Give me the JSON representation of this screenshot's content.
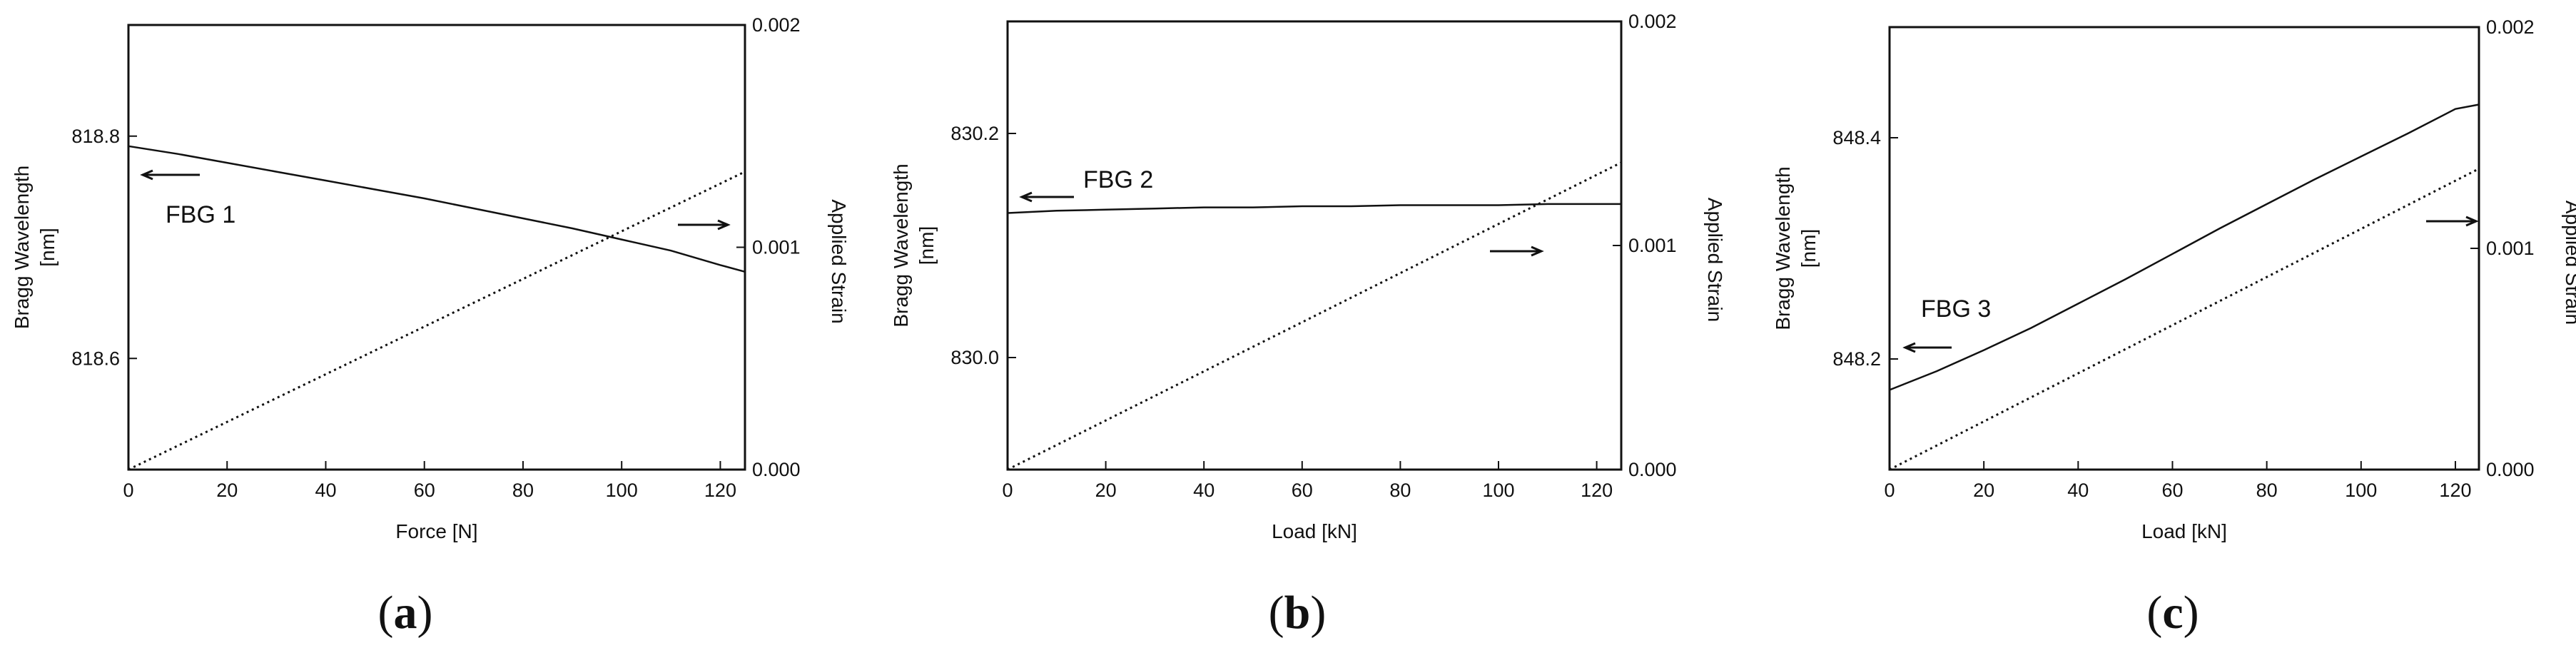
{
  "chart_data": [
    {
      "type": "line",
      "caption_letter": "a",
      "xlabel": "Force [N]",
      "ylabel": [
        "Bragg Wavelength",
        "[nm]"
      ],
      "y2label": "Applied Strain",
      "xlim": [
        0,
        125
      ],
      "ylim": [
        818.5,
        818.9
      ],
      "y2lim": [
        0.0,
        0.002
      ],
      "xticks": [
        "0",
        "20",
        "40",
        "60",
        "80",
        "100",
        "120"
      ],
      "yticks": [
        "818.6",
        "818.8"
      ],
      "y2ticks": [
        "0.000",
        "0.001",
        "0.002"
      ],
      "series": [
        {
          "label": "FBG 1",
          "axis": "left",
          "style": "solid",
          "x": [
            0,
            10,
            20,
            30,
            40,
            50,
            60,
            70,
            80,
            90,
            100,
            110,
            120,
            125
          ],
          "y": [
            818.791,
            818.784,
            818.776,
            818.768,
            818.76,
            818.752,
            818.744,
            818.735,
            818.726,
            818.717,
            818.707,
            818.697,
            818.684,
            818.678
          ]
        },
        {
          "label": "",
          "axis": "right",
          "style": "dotted",
          "x": [
            0,
            125
          ],
          "y": [
            0.0,
            0.00134
          ]
        }
      ]
    },
    {
      "type": "line",
      "caption_letter": "b",
      "xlabel": "Load [kN]",
      "ylabel": [
        "Bragg Wavelength",
        "[nm]"
      ],
      "y2label": "Applied Strain",
      "xlim": [
        0,
        125
      ],
      "ylim": [
        829.9,
        830.3
      ],
      "y2lim": [
        0.0,
        0.002
      ],
      "xticks": [
        "0",
        "20",
        "40",
        "60",
        "80",
        "100",
        "120"
      ],
      "yticks": [
        "830.0",
        "830.2"
      ],
      "y2ticks": [
        "0.000",
        "0.001",
        "0.002"
      ],
      "series": [
        {
          "label": "FBG 2",
          "axis": "left",
          "style": "solid",
          "x": [
            0,
            10,
            20,
            30,
            40,
            50,
            60,
            70,
            80,
            90,
            100,
            110,
            120,
            125
          ],
          "y": [
            830.129,
            830.131,
            830.132,
            830.133,
            830.134,
            830.134,
            830.135,
            830.135,
            830.136,
            830.136,
            830.136,
            830.137,
            830.137,
            830.137
          ]
        },
        {
          "label": "",
          "axis": "right",
          "style": "dotted",
          "x": [
            0,
            125
          ],
          "y": [
            0.0,
            0.00137
          ]
        }
      ]
    },
    {
      "type": "line",
      "caption_letter": "c",
      "xlabel": "Load [kN]",
      "ylabel": [
        "Bragg Wavelength",
        "[nm]"
      ],
      "y2label": "Applied Strain",
      "xlim": [
        0,
        125
      ],
      "ylim": [
        848.1,
        848.5
      ],
      "y2lim": [
        0.0,
        0.002
      ],
      "xticks": [
        "0",
        "20",
        "40",
        "60",
        "80",
        "100",
        "120"
      ],
      "yticks": [
        "848.2",
        "848.4"
      ],
      "y2ticks": [
        "0.000",
        "0.001",
        "0.002"
      ],
      "series": [
        {
          "label": "FBG 3",
          "axis": "left",
          "style": "solid",
          "x": [
            0,
            10,
            20,
            30,
            40,
            50,
            60,
            70,
            80,
            90,
            100,
            110,
            120,
            125
          ],
          "y": [
            848.172,
            848.189,
            848.208,
            848.228,
            848.25,
            848.272,
            848.295,
            848.318,
            848.34,
            848.362,
            848.383,
            848.404,
            848.426,
            848.43
          ]
        },
        {
          "label": "",
          "axis": "right",
          "style": "dotted",
          "x": [
            0,
            125
          ],
          "y": [
            0.0,
            0.00136
          ]
        }
      ]
    }
  ]
}
